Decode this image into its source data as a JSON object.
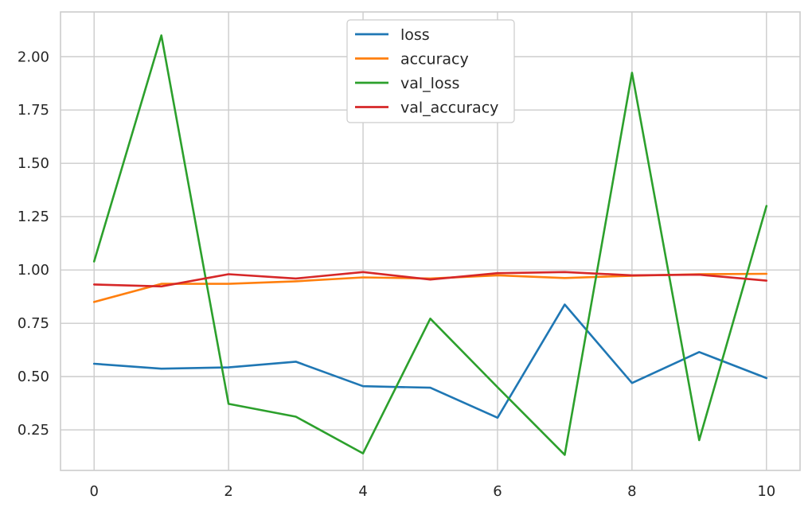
{
  "chart_data": {
    "type": "line",
    "title": "",
    "xlabel": "",
    "ylabel": "",
    "xlim": [
      -0.5,
      10.5
    ],
    "ylim": [
      0.06,
      2.21
    ],
    "xticks": [
      0,
      2,
      4,
      6,
      8,
      10
    ],
    "xtick_labels": [
      "0",
      "2",
      "4",
      "6",
      "8",
      "10"
    ],
    "yticks": [
      0.25,
      0.5,
      0.75,
      1.0,
      1.25,
      1.5,
      1.75,
      2.0
    ],
    "ytick_labels": [
      "0.25",
      "0.50",
      "0.75",
      "1.00",
      "1.25",
      "1.50",
      "1.75",
      "2.00"
    ],
    "grid": true,
    "legend_position": "top-center",
    "x": [
      0,
      1,
      2,
      3,
      4,
      5,
      6,
      7,
      8,
      9,
      10
    ],
    "series": [
      {
        "name": "loss",
        "color": "#1f77b4",
        "values": [
          0.56,
          0.537,
          0.543,
          0.57,
          0.455,
          0.448,
          0.307,
          0.838,
          0.47,
          0.615,
          0.493
        ]
      },
      {
        "name": "accuracy",
        "color": "#ff7f0e",
        "values": [
          0.85,
          0.935,
          0.935,
          0.947,
          0.965,
          0.96,
          0.975,
          0.962,
          0.973,
          0.98,
          0.982
        ]
      },
      {
        "name": "val_loss",
        "color": "#2ca02c",
        "values": [
          1.04,
          2.1,
          0.372,
          0.312,
          0.14,
          0.772,
          0.45,
          0.133,
          1.925,
          0.202,
          1.3
        ]
      },
      {
        "name": "val_accuracy",
        "color": "#d62728",
        "values": [
          0.932,
          0.923,
          0.98,
          0.96,
          0.99,
          0.955,
          0.985,
          0.99,
          0.975,
          0.978,
          0.95
        ]
      }
    ]
  }
}
